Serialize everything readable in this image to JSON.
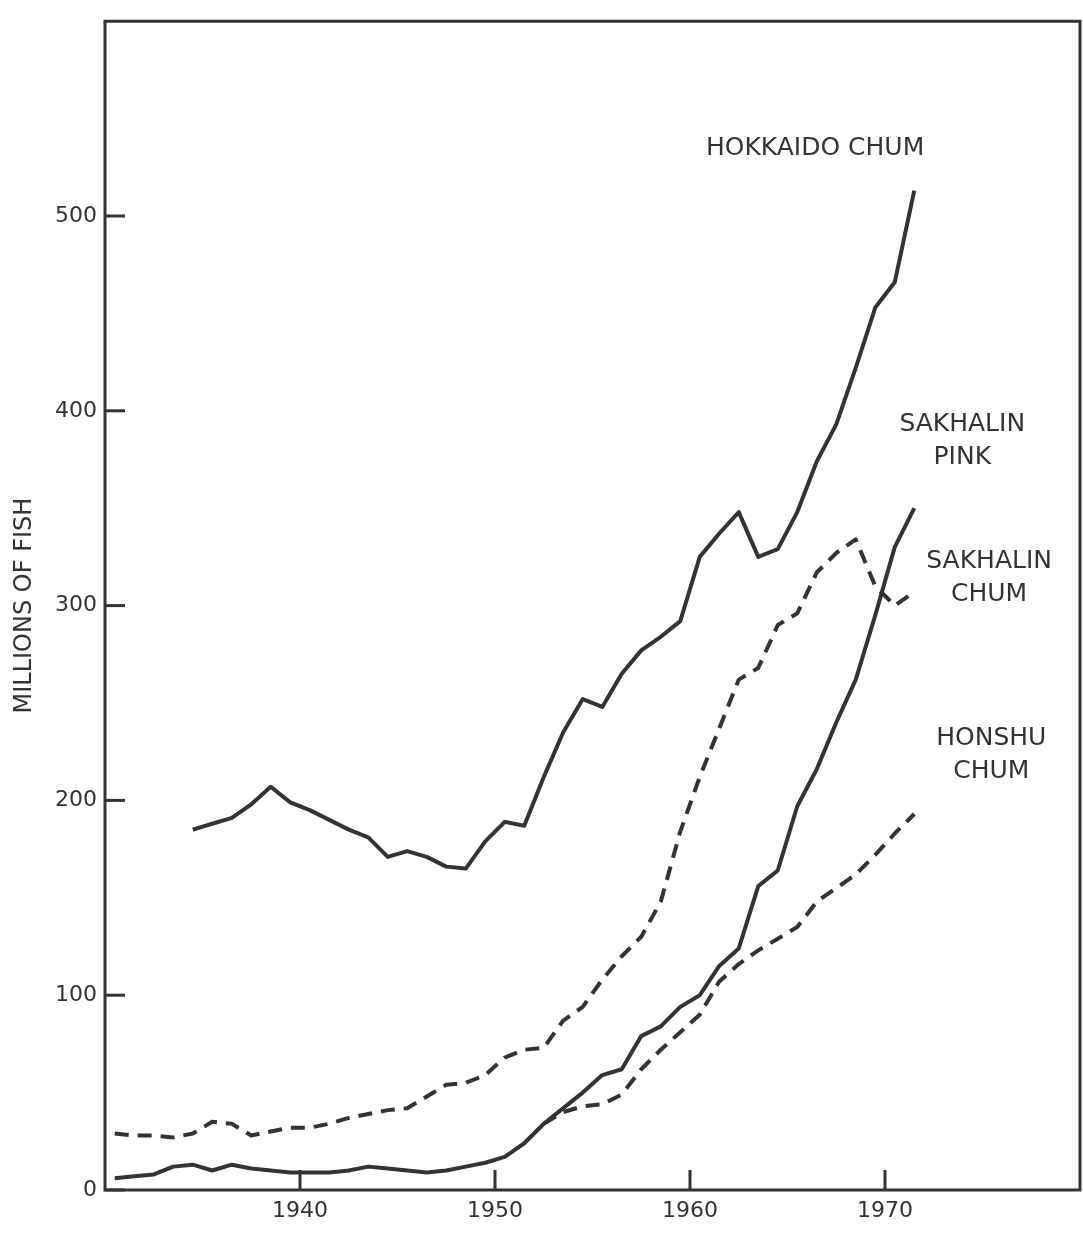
{
  "chart_data": {
    "type": "line",
    "ylabel": "MILLIONS OF FISH",
    "xlim": [
      1930,
      1980
    ],
    "xticks": [
      1940,
      1950,
      1960,
      1970
    ],
    "ylim": [
      0,
      600
    ],
    "yticks": [
      0,
      100,
      200,
      300,
      400,
      500
    ],
    "grid": false,
    "legend": false,
    "marker": "none",
    "series": [
      {
        "name": "HOKKAIDO CHUM",
        "color": "#333333",
        "line_style": "solid",
        "x": [
          1934.5,
          1935.5,
          1936.5,
          1937.5,
          1938.5,
          1939.5,
          1940.5,
          1941.5,
          1942.5,
          1943.5,
          1944.5,
          1945.5,
          1946.5,
          1947.5,
          1948.5,
          1949.5,
          1950.5,
          1951.5,
          1952.5,
          1953.5,
          1954.5,
          1955.5,
          1956.5,
          1957.5,
          1958.5,
          1959.5,
          1960.5,
          1961.5,
          1962.5,
          1963.5,
          1964.5,
          1965.5,
          1966.5,
          1967.5,
          1968.5,
          1969.5,
          1970.5,
          1971.5
        ],
        "values": [
          185,
          188,
          191,
          198,
          207,
          199,
          195,
          190,
          185,
          181,
          171,
          174,
          171,
          166,
          165,
          179,
          189,
          187,
          212,
          235,
          252,
          248,
          265,
          277,
          284,
          292,
          325,
          337,
          348,
          325,
          329,
          348,
          374,
          393,
          422,
          453,
          466,
          513
        ]
      },
      {
        "name": "SAKHALIN\nPINK",
        "color": "#333333",
        "line_style": "solid",
        "x": [
          1930.5,
          1931.5,
          1932.5,
          1933.5,
          1934.5,
          1935.5,
          1936.5,
          1937.5,
          1938.5,
          1939.5,
          1940.5,
          1941.5,
          1942.5,
          1943.5,
          1944.5,
          1945.5,
          1946.5,
          1947.5,
          1948.5,
          1949.5,
          1950.5,
          1951.5,
          1952.5,
          1953.5,
          1954.5,
          1955.5,
          1956.5,
          1957.5,
          1958.5,
          1959.5,
          1960.5,
          1961.5,
          1962.5,
          1963.5,
          1964.5,
          1965.5,
          1966.5,
          1967.5,
          1968.5,
          1969.5,
          1970.5,
          1971.5
        ],
        "values": [
          6,
          7,
          8,
          12,
          13,
          10,
          13,
          11,
          10,
          9,
          9,
          9,
          10,
          12,
          11,
          10,
          9,
          10,
          12,
          14,
          17,
          24,
          34,
          42,
          50,
          59,
          62,
          79,
          84,
          94,
          100,
          115,
          124,
          156,
          164,
          197,
          216,
          240,
          262,
          295,
          330,
          350
        ]
      },
      {
        "name": "SAKHALIN\nCHUM",
        "color": "#333333",
        "line_style": "dashed",
        "x": [
          1930.5,
          1931.5,
          1932.5,
          1933.5,
          1934.5,
          1935.5,
          1936.5,
          1937.5,
          1938.5,
          1939.5,
          1940.5,
          1941.5,
          1942.5,
          1943.5,
          1944.5,
          1945.5,
          1946.5,
          1947.5,
          1948.5,
          1949.5,
          1950.5,
          1951.5,
          1952.5,
          1953.5,
          1954.5,
          1955.5,
          1956.5,
          1957.5,
          1958.5,
          1959.5,
          1960.5,
          1961.5,
          1962.5,
          1963.5,
          1964.5,
          1965.5,
          1966.5,
          1967.5,
          1968.5,
          1969.5,
          1970.5,
          1971.5
        ],
        "values": [
          29,
          28,
          28,
          27,
          29,
          35,
          34,
          28,
          30,
          32,
          32,
          34,
          37,
          39,
          41,
          42,
          48,
          54,
          55,
          59,
          68,
          72,
          73,
          87,
          94,
          108,
          120,
          130,
          148,
          184,
          212,
          237,
          262,
          268,
          290,
          296,
          317,
          327,
          334,
          310,
          300,
          307
        ]
      },
      {
        "name": "HONSHU\nCHUM",
        "color": "#333333",
        "line_style": "dashed",
        "x": [
          1952.5,
          1953.5,
          1954.5,
          1955.5,
          1956.5,
          1957.5,
          1958.5,
          1959.5,
          1960.5,
          1961.5,
          1962.5,
          1963.5,
          1964.5,
          1965.5,
          1966.5,
          1967.5,
          1968.5,
          1969.5,
          1970.5,
          1971.5
        ],
        "values": [
          34,
          40,
          43,
          44,
          49,
          62,
          72,
          81,
          90,
          107,
          116,
          123,
          129,
          135,
          148,
          155,
          162,
          172,
          183,
          193
        ]
      }
    ]
  }
}
